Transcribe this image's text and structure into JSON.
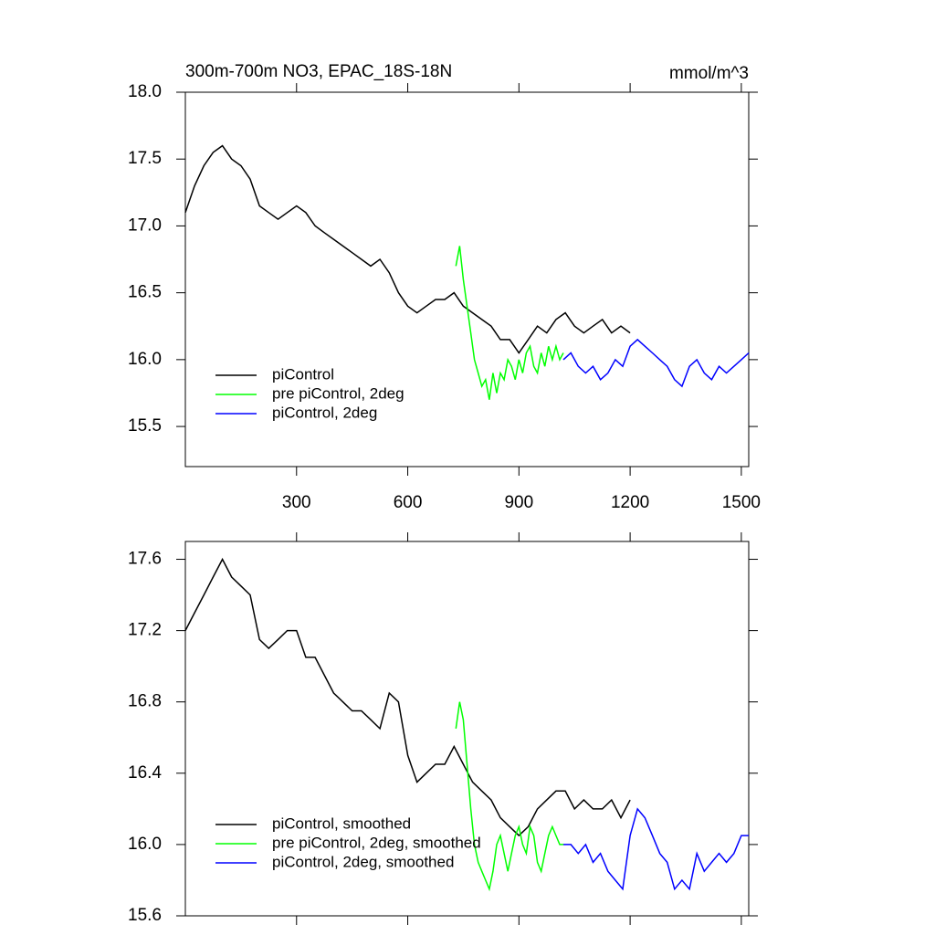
{
  "chart_data": [
    {
      "type": "line",
      "title": "300m-700m NO3, EPAC_18S-18N",
      "units": "mmol/m^3",
      "xlim": [
        0,
        1520
      ],
      "xticks": [
        300,
        600,
        900,
        1200,
        1500
      ],
      "ylim": [
        15.2,
        18.0
      ],
      "yticks": [
        {
          "value": 18.0,
          "label": "18.0"
        },
        17.5,
        {
          "value": 17.0,
          "label": "17.0"
        },
        16.5,
        {
          "value": 16.0,
          "label": "16.0"
        },
        15.5
      ],
      "legend": "lower left",
      "series": [
        {
          "name": "piControl",
          "color": "#000000",
          "x": [
            0,
            25,
            50,
            75,
            100,
            125,
            150,
            175,
            200,
            225,
            250,
            275,
            300,
            325,
            350,
            375,
            400,
            425,
            450,
            475,
            500,
            525,
            550,
            575,
            600,
            625,
            650,
            675,
            700,
            725,
            750,
            775,
            800,
            825,
            850,
            875,
            900,
            925,
            950,
            975,
            1000,
            1025,
            1050,
            1075,
            1100,
            1125,
            1150,
            1175,
            1200
          ],
          "values": [
            17.1,
            17.3,
            17.45,
            17.55,
            17.6,
            17.5,
            17.45,
            17.35,
            17.15,
            17.1,
            17.05,
            17.1,
            17.15,
            17.1,
            17.0,
            16.95,
            16.9,
            16.85,
            16.8,
            16.75,
            16.7,
            16.75,
            16.65,
            16.5,
            16.4,
            16.35,
            16.4,
            16.45,
            16.45,
            16.5,
            16.4,
            16.35,
            16.3,
            16.25,
            16.15,
            16.15,
            16.05,
            16.15,
            16.25,
            16.2,
            16.3,
            16.35,
            16.25,
            16.2,
            16.25,
            16.3,
            16.2,
            16.25,
            16.2
          ]
        },
        {
          "name": "pre piControl, 2deg",
          "color": "#00ff00",
          "x": [
            730,
            740,
            750,
            760,
            770,
            780,
            790,
            800,
            810,
            820,
            830,
            840,
            850,
            860,
            870,
            880,
            890,
            900,
            910,
            920,
            930,
            940,
            950,
            960,
            970,
            980,
            990,
            1000,
            1010,
            1020
          ],
          "values": [
            16.7,
            16.85,
            16.6,
            16.4,
            16.2,
            16.0,
            15.9,
            15.8,
            15.85,
            15.7,
            15.9,
            15.75,
            15.9,
            15.85,
            16.0,
            15.95,
            15.85,
            16.0,
            15.9,
            16.05,
            16.1,
            15.95,
            15.9,
            16.05,
            15.95,
            16.1,
            16.0,
            16.1,
            16.0,
            16.05
          ]
        },
        {
          "name": "piControl, 2deg",
          "color": "#0000ff",
          "x": [
            1020,
            1040,
            1060,
            1080,
            1100,
            1120,
            1140,
            1160,
            1180,
            1200,
            1220,
            1240,
            1260,
            1280,
            1300,
            1320,
            1340,
            1360,
            1380,
            1400,
            1420,
            1440,
            1460,
            1480,
            1500,
            1520
          ],
          "values": [
            16.0,
            16.05,
            15.95,
            15.9,
            15.95,
            15.85,
            15.9,
            16.0,
            15.95,
            16.1,
            16.15,
            16.1,
            16.05,
            16.0,
            15.95,
            15.85,
            15.8,
            15.95,
            16.0,
            15.9,
            15.85,
            15.95,
            15.9,
            15.95,
            16.0,
            16.05
          ]
        }
      ]
    },
    {
      "type": "line",
      "xlim": [
        0,
        1520
      ],
      "xticks": [
        300,
        600,
        900,
        1200,
        1500
      ],
      "ylim": [
        15.6,
        17.7
      ],
      "yticks": [
        17.6,
        17.2,
        16.8,
        16.4,
        {
          "value": 16.0,
          "label": "16.0"
        },
        15.6
      ],
      "legend": "lower left",
      "series": [
        {
          "name": "piControl, smoothed",
          "color": "#000000",
          "x": [
            0,
            25,
            50,
            75,
            100,
            125,
            150,
            175,
            200,
            225,
            250,
            275,
            300,
            325,
            350,
            375,
            400,
            425,
            450,
            475,
            500,
            525,
            550,
            575,
            600,
            625,
            650,
            675,
            700,
            725,
            750,
            775,
            800,
            825,
            850,
            875,
            900,
            925,
            950,
            975,
            1000,
            1025,
            1050,
            1075,
            1100,
            1125,
            1150,
            1175,
            1200
          ],
          "values": [
            17.2,
            17.3,
            17.4,
            17.5,
            17.6,
            17.5,
            17.45,
            17.4,
            17.15,
            17.1,
            17.15,
            17.2,
            17.2,
            17.05,
            17.05,
            16.95,
            16.85,
            16.8,
            16.75,
            16.75,
            16.7,
            16.65,
            16.85,
            16.8,
            16.5,
            16.35,
            16.4,
            16.45,
            16.45,
            16.55,
            16.45,
            16.35,
            16.3,
            16.25,
            16.15,
            16.1,
            16.05,
            16.1,
            16.2,
            16.25,
            16.3,
            16.3,
            16.2,
            16.25,
            16.2,
            16.2,
            16.25,
            16.15,
            16.25
          ]
        },
        {
          "name": "pre piControl, 2deg, smoothed",
          "color": "#00ff00",
          "x": [
            730,
            740,
            750,
            760,
            770,
            780,
            790,
            800,
            810,
            820,
            830,
            840,
            850,
            860,
            870,
            880,
            890,
            900,
            910,
            920,
            930,
            940,
            950,
            960,
            970,
            980,
            990,
            1000,
            1010,
            1020
          ],
          "values": [
            16.65,
            16.8,
            16.7,
            16.45,
            16.2,
            16.0,
            15.9,
            15.85,
            15.8,
            15.75,
            15.85,
            16.0,
            16.05,
            15.95,
            15.85,
            15.95,
            16.05,
            16.1,
            16.0,
            15.95,
            16.1,
            16.05,
            15.9,
            15.85,
            15.95,
            16.05,
            16.1,
            16.05,
            16.0,
            16.0
          ]
        },
        {
          "name": "piControl, 2deg, smoothed",
          "color": "#0000ff",
          "x": [
            1020,
            1040,
            1060,
            1080,
            1100,
            1120,
            1140,
            1160,
            1180,
            1200,
            1220,
            1240,
            1260,
            1280,
            1300,
            1320,
            1340,
            1360,
            1380,
            1400,
            1420,
            1440,
            1460,
            1480,
            1500,
            1520
          ],
          "values": [
            16.0,
            16.0,
            15.95,
            16.0,
            15.9,
            15.95,
            15.85,
            15.8,
            15.75,
            16.05,
            16.2,
            16.15,
            16.05,
            15.95,
            15.9,
            15.75,
            15.8,
            15.75,
            15.95,
            15.85,
            15.9,
            15.95,
            15.9,
            15.95,
            16.05,
            16.05
          ]
        }
      ]
    }
  ]
}
